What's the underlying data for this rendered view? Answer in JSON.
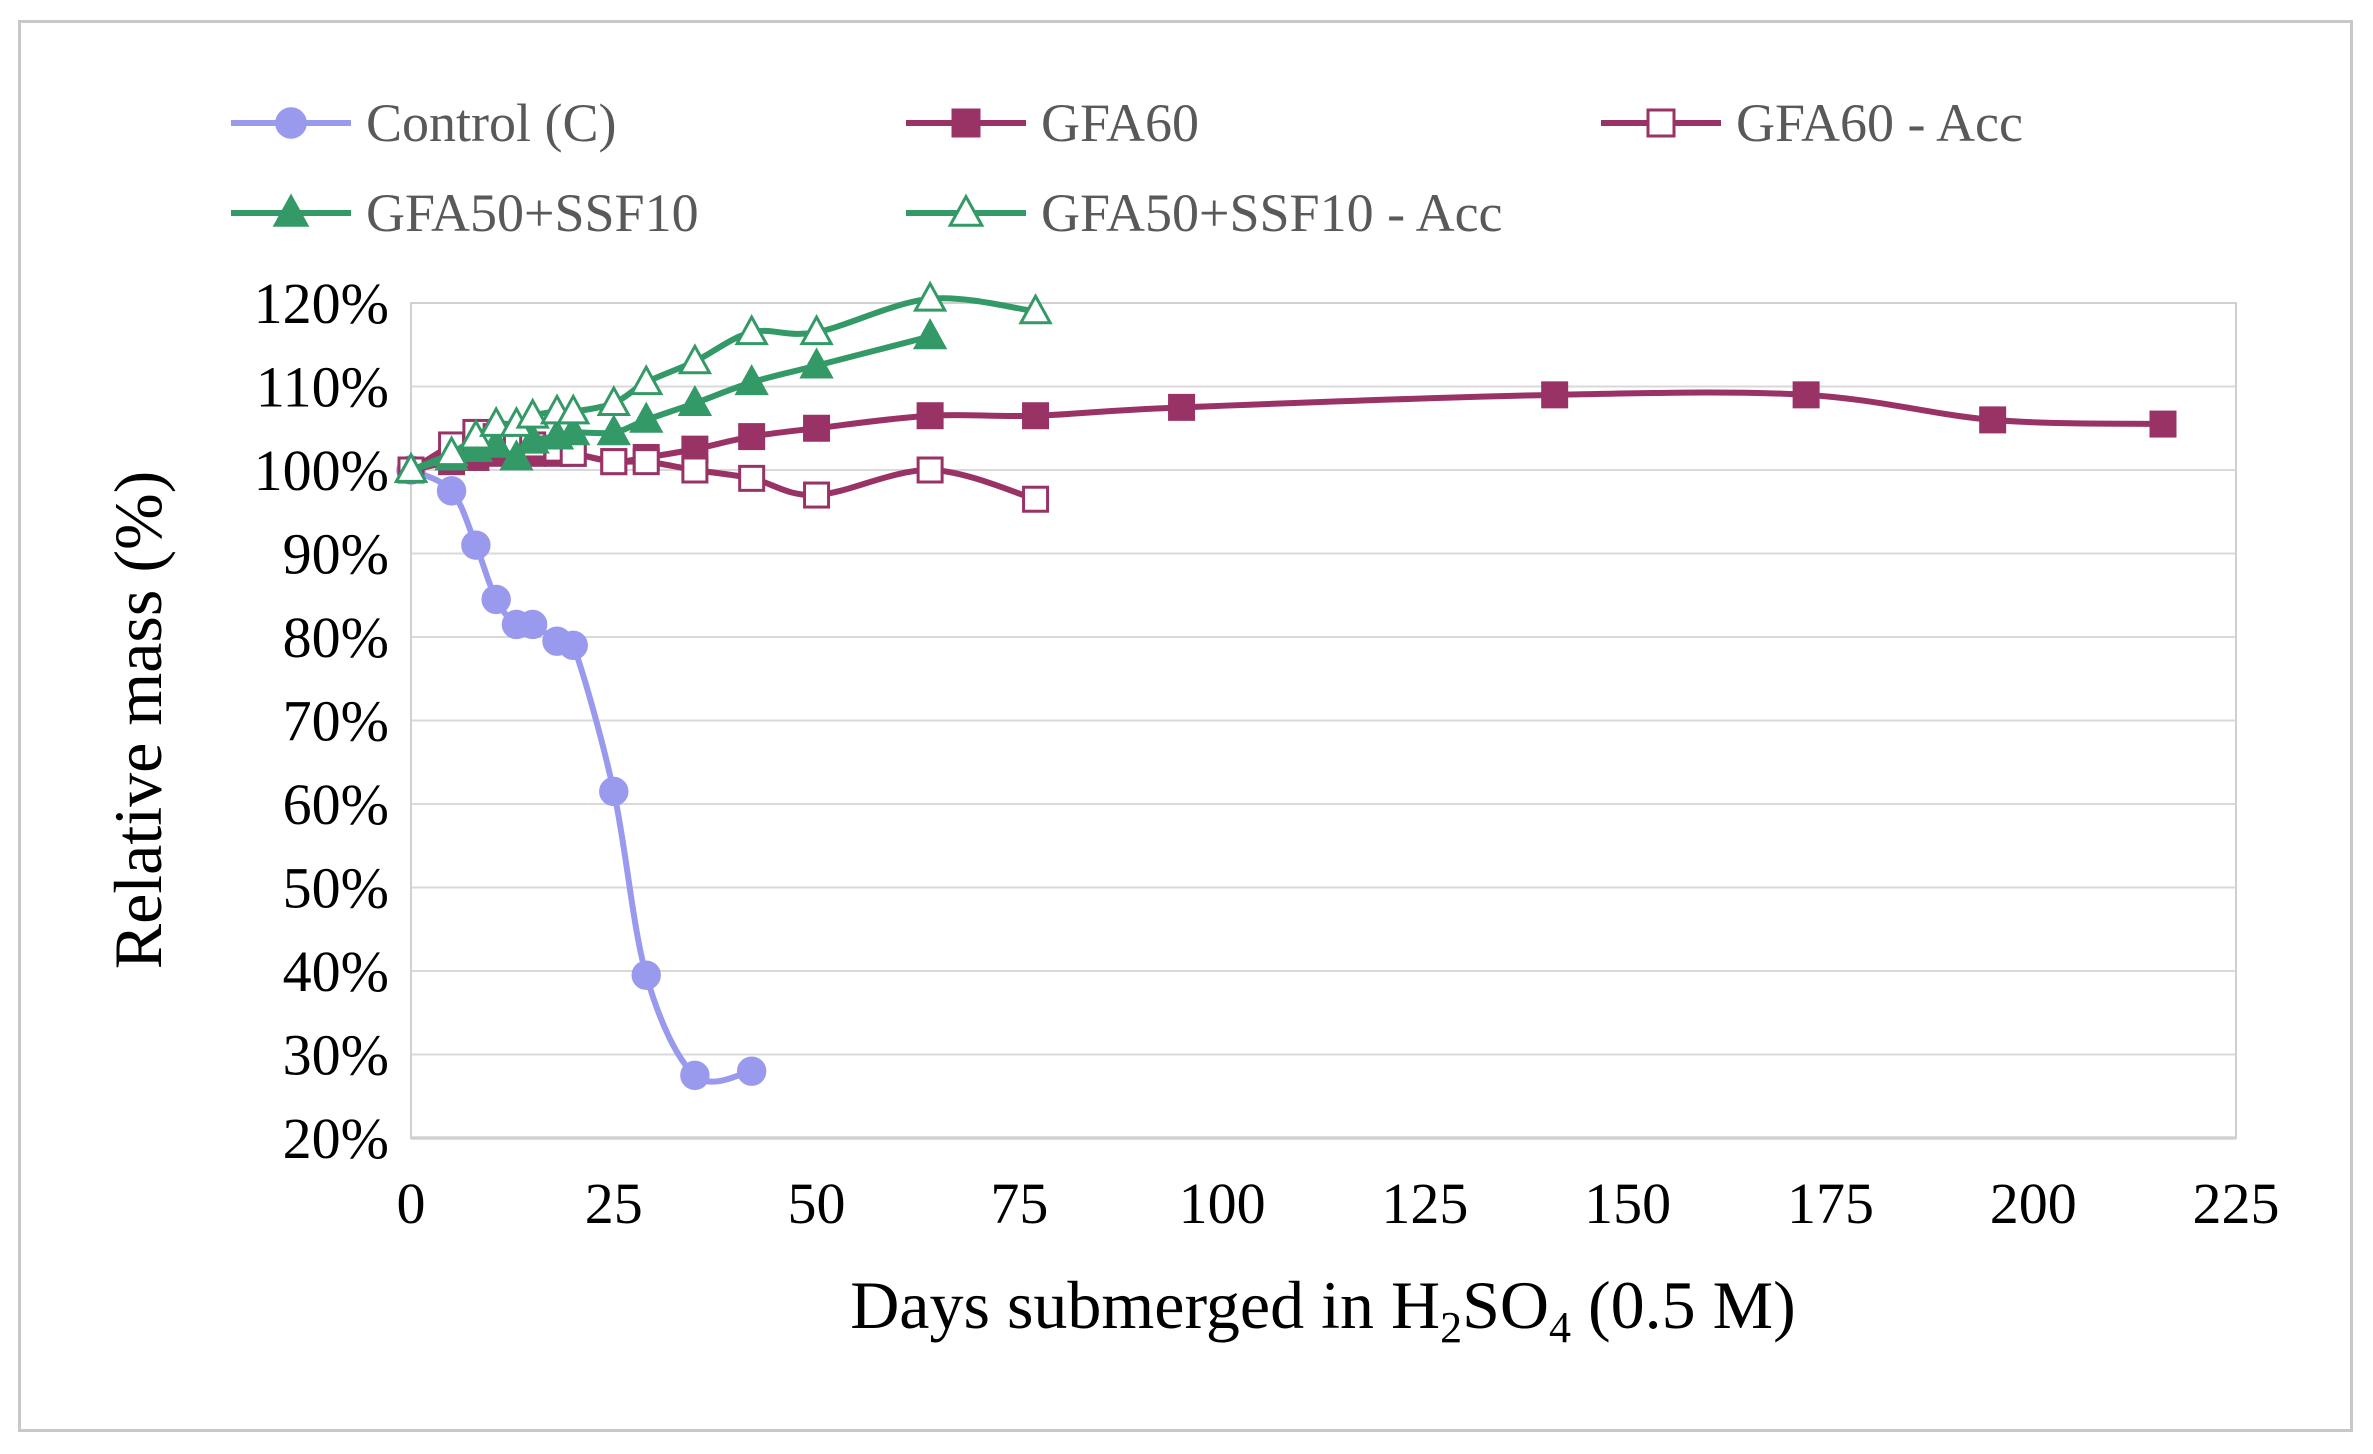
{
  "chart_data": {
    "type": "line",
    "title": "",
    "xlabel": "Days submerged in H2SO4 (0.5 M)",
    "xlabel_parts": {
      "pre": "Days submerged in H",
      "s1": "2",
      "mid": "SO",
      "s2": "4",
      "post": " (0.5 M)"
    },
    "ylabel": "Relative mass (%)",
    "xlim": [
      0,
      225
    ],
    "ylim": [
      20,
      120
    ],
    "x_ticks": [
      0,
      25,
      50,
      75,
      100,
      125,
      150,
      175,
      200,
      225
    ],
    "x_tick_labels": [
      "0",
      "25",
      "50",
      "75",
      "100",
      "125",
      "150",
      "175",
      "200",
      "225"
    ],
    "y_ticks": [
      20,
      30,
      40,
      50,
      60,
      70,
      80,
      90,
      100,
      110,
      120
    ],
    "y_tick_labels": [
      "20%",
      "30%",
      "40%",
      "50%",
      "60%",
      "70%",
      "80%",
      "90%",
      "100%",
      "110%",
      "120%"
    ],
    "grid": "horizontal",
    "legend_position": "top",
    "series": [
      {
        "name": "Control (C)",
        "color": "#9999ee",
        "marker": "circle",
        "filled": true,
        "x": [
          0,
          5,
          8,
          10.5,
          13,
          15,
          18,
          20,
          25,
          29,
          35,
          42
        ],
        "y": [
          100,
          97.5,
          91,
          84.5,
          81.5,
          81.5,
          79.5,
          79,
          61.5,
          39.5,
          27.5,
          28
        ]
      },
      {
        "name": "GFA60",
        "color": "#993366",
        "marker": "square",
        "filled": true,
        "x": [
          0,
          5,
          8,
          10.5,
          13,
          15,
          18,
          20,
          25,
          29,
          35,
          42,
          50,
          64,
          77,
          95,
          141,
          172,
          195,
          216
        ],
        "y": [
          100,
          101,
          101.5,
          102,
          102,
          102,
          102,
          102,
          101,
          101.5,
          102.5,
          104,
          105,
          106.5,
          106.5,
          107.5,
          109,
          109,
          106,
          105.5
        ]
      },
      {
        "name": "GFA60 - Acc",
        "color": "#993366",
        "marker": "square",
        "filled": false,
        "x": [
          0,
          5,
          8,
          10.5,
          13,
          15,
          18,
          20,
          25,
          29,
          35,
          42,
          50,
          64,
          77
        ],
        "y": [
          100,
          103,
          104.5,
          104,
          103.5,
          103,
          102.5,
          102,
          101,
          101,
          100,
          99,
          97,
          100,
          96.5
        ]
      },
      {
        "name": "GFA50+SSF10",
        "color": "#339966",
        "marker": "triangle",
        "filled": true,
        "x": [
          0,
          5,
          8,
          10.5,
          13,
          15,
          18,
          20,
          25,
          29,
          35,
          42,
          50,
          64
        ],
        "y": [
          100,
          101.5,
          102.5,
          103,
          101.5,
          103.5,
          104,
          104.5,
          104.5,
          106,
          108,
          110.5,
          112.5,
          116
        ]
      },
      {
        "name": "GFA50+SSF10 - Acc",
        "color": "#339966",
        "marker": "triangle",
        "filled": false,
        "x": [
          0,
          5,
          8,
          10.5,
          13,
          15,
          18,
          20,
          25,
          29,
          35,
          42,
          50,
          64,
          77
        ],
        "y": [
          100,
          102,
          104,
          105.5,
          105.5,
          106.5,
          107,
          107,
          108,
          110.5,
          113,
          116.5,
          116.5,
          120.5,
          119
        ]
      }
    ]
  }
}
